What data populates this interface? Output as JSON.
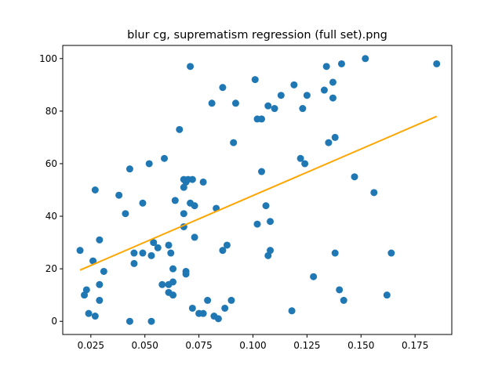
{
  "chart_data": {
    "type": "scatter",
    "title": "blur cg, suprematism regression (full set).png",
    "xlabel": "",
    "ylabel": "",
    "xlim": [
      0.012,
      0.192
    ],
    "ylim": [
      -5,
      105
    ],
    "x_ticks": [
      0.025,
      0.05,
      0.075,
      0.1,
      0.125,
      0.15,
      0.175
    ],
    "x_tick_labels": [
      "0.025",
      "0.050",
      "0.075",
      "0.100",
      "0.125",
      "0.150",
      "0.175"
    ],
    "y_ticks": [
      0,
      20,
      40,
      60,
      80,
      100
    ],
    "y_tick_labels": [
      "0",
      "20",
      "40",
      "60",
      "80",
      "100"
    ],
    "grid": false,
    "point_color": "#1f77b4",
    "line_color": "#ffa500",
    "points": [
      [
        0.02,
        27
      ],
      [
        0.022,
        10
      ],
      [
        0.023,
        12
      ],
      [
        0.024,
        3
      ],
      [
        0.026,
        23
      ],
      [
        0.027,
        2
      ],
      [
        0.027,
        50
      ],
      [
        0.029,
        8
      ],
      [
        0.029,
        14
      ],
      [
        0.029,
        31
      ],
      [
        0.031,
        19
      ],
      [
        0.038,
        48
      ],
      [
        0.041,
        41
      ],
      [
        0.043,
        0
      ],
      [
        0.043,
        58
      ],
      [
        0.045,
        26
      ],
      [
        0.045,
        22
      ],
      [
        0.049,
        45
      ],
      [
        0.049,
        26
      ],
      [
        0.052,
        60
      ],
      [
        0.053,
        0
      ],
      [
        0.053,
        25
      ],
      [
        0.054,
        30
      ],
      [
        0.056,
        28
      ],
      [
        0.058,
        14
      ],
      [
        0.059,
        62
      ],
      [
        0.061,
        29
      ],
      [
        0.061,
        11
      ],
      [
        0.061,
        14
      ],
      [
        0.062,
        26
      ],
      [
        0.063,
        20
      ],
      [
        0.063,
        15
      ],
      [
        0.063,
        10
      ],
      [
        0.064,
        46
      ],
      [
        0.066,
        73
      ],
      [
        0.068,
        54
      ],
      [
        0.068,
        51
      ],
      [
        0.068,
        41
      ],
      [
        0.068,
        36
      ],
      [
        0.069,
        19
      ],
      [
        0.069,
        18
      ],
      [
        0.069,
        53
      ],
      [
        0.07,
        54
      ],
      [
        0.071,
        97
      ],
      [
        0.071,
        45
      ],
      [
        0.072,
        54
      ],
      [
        0.073,
        44
      ],
      [
        0.072,
        5
      ],
      [
        0.073,
        32
      ],
      [
        0.075,
        3
      ],
      [
        0.077,
        53
      ],
      [
        0.077,
        3
      ],
      [
        0.079,
        8
      ],
      [
        0.081,
        83
      ],
      [
        0.082,
        2
      ],
      [
        0.083,
        43
      ],
      [
        0.084,
        1
      ],
      [
        0.086,
        27
      ],
      [
        0.086,
        89
      ],
      [
        0.087,
        5
      ],
      [
        0.088,
        29
      ],
      [
        0.09,
        8
      ],
      [
        0.091,
        68
      ],
      [
        0.092,
        83
      ],
      [
        0.101,
        92
      ],
      [
        0.102,
        77
      ],
      [
        0.102,
        37
      ],
      [
        0.104,
        77
      ],
      [
        0.104,
        57
      ],
      [
        0.106,
        44
      ],
      [
        0.107,
        82
      ],
      [
        0.107,
        25
      ],
      [
        0.108,
        27
      ],
      [
        0.108,
        38
      ],
      [
        0.11,
        81
      ],
      [
        0.113,
        86
      ],
      [
        0.118,
        4
      ],
      [
        0.119,
        90
      ],
      [
        0.122,
        62
      ],
      [
        0.123,
        81
      ],
      [
        0.124,
        60
      ],
      [
        0.125,
        86
      ],
      [
        0.128,
        17
      ],
      [
        0.133,
        88
      ],
      [
        0.134,
        97
      ],
      [
        0.135,
        68
      ],
      [
        0.137,
        91
      ],
      [
        0.137,
        85
      ],
      [
        0.138,
        70
      ],
      [
        0.138,
        26
      ],
      [
        0.14,
        12
      ],
      [
        0.141,
        98
      ],
      [
        0.142,
        8
      ],
      [
        0.147,
        55
      ],
      [
        0.152,
        100
      ],
      [
        0.156,
        49
      ],
      [
        0.162,
        10
      ],
      [
        0.164,
        26
      ],
      [
        0.185,
        98
      ]
    ],
    "regression_line": {
      "x": [
        0.02,
        0.185
      ],
      "y": [
        19.5,
        78
      ]
    }
  }
}
